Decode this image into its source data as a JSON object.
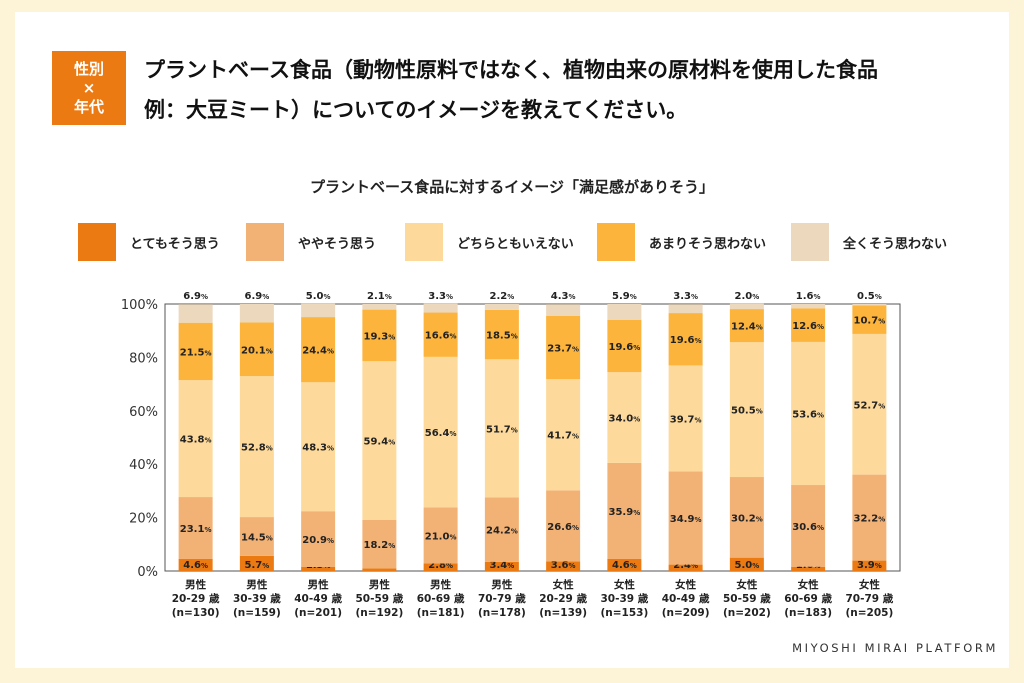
{
  "tag": {
    "line1": "性別",
    "line2": "×",
    "line3": "年代"
  },
  "question": {
    "line1": "プラントベース食品（動物性原料ではなく、植物由来の原材料を使用した食品",
    "line2": "例：大豆ミート）についてのイメージを教えてください。"
  },
  "brand": "MIYOSHI MIRAI PLATFORM",
  "chart_data": {
    "type": "bar",
    "stacked": true,
    "title": "プラントベース食品に対するイメージ「満足感がありそう」",
    "ylim": [
      0,
      100
    ],
    "yticks": [
      "0%",
      "20%",
      "40%",
      "60%",
      "80%",
      "100%"
    ],
    "value_unit": "%",
    "categories": [
      {
        "gender": "男性",
        "age": "20-29 歳",
        "n": "(n=130)"
      },
      {
        "gender": "男性",
        "age": "30-39 歳",
        "n": "(n=159)"
      },
      {
        "gender": "男性",
        "age": "40-49 歳",
        "n": "(n=201)"
      },
      {
        "gender": "男性",
        "age": "50-59 歳",
        "n": "(n=192)"
      },
      {
        "gender": "男性",
        "age": "60-69 歳",
        "n": "(n=181)"
      },
      {
        "gender": "男性",
        "age": "70-79 歳",
        "n": "(n=178)"
      },
      {
        "gender": "女性",
        "age": "20-29 歳",
        "n": "(n=139)"
      },
      {
        "gender": "女性",
        "age": "30-39 歳",
        "n": "(n=153)"
      },
      {
        "gender": "女性",
        "age": "40-49 歳",
        "n": "(n=209)"
      },
      {
        "gender": "女性",
        "age": "50-59 歳",
        "n": "(n=202)"
      },
      {
        "gender": "女性",
        "age": "60-69 歳",
        "n": "(n=183)"
      },
      {
        "gender": "女性",
        "age": "70-79 歳",
        "n": "(n=205)"
      }
    ],
    "series": [
      {
        "name": "とてもそう思う",
        "color": "#ec7a12",
        "values": [
          4.6,
          5.7,
          1.5,
          1.0,
          2.8,
          3.4,
          3.6,
          4.6,
          2.4,
          5.0,
          1.6,
          3.9
        ]
      },
      {
        "name": "ややそう思う",
        "color": "#f3b275",
        "values": [
          23.1,
          14.5,
          20.9,
          18.2,
          21.0,
          24.2,
          26.6,
          35.9,
          34.9,
          30.2,
          30.6,
          32.2
        ]
      },
      {
        "name": "どちらともいえない",
        "color": "#fdd99b",
        "values": [
          43.8,
          52.8,
          48.3,
          59.4,
          56.4,
          51.7,
          41.7,
          34.0,
          39.7,
          50.5,
          53.6,
          52.7
        ]
      },
      {
        "name": "あまりそう思わない",
        "color": "#fcb43c",
        "values": [
          21.5,
          20.1,
          24.4,
          19.3,
          16.6,
          18.5,
          23.7,
          19.6,
          19.6,
          12.4,
          12.6,
          10.7
        ]
      },
      {
        "name": "全くそう思わない",
        "color": "#ecd8bd",
        "values": [
          6.9,
          6.9,
          5.0,
          2.1,
          3.3,
          2.2,
          4.3,
          5.9,
          3.3,
          2.0,
          1.6,
          0.5
        ]
      }
    ]
  }
}
